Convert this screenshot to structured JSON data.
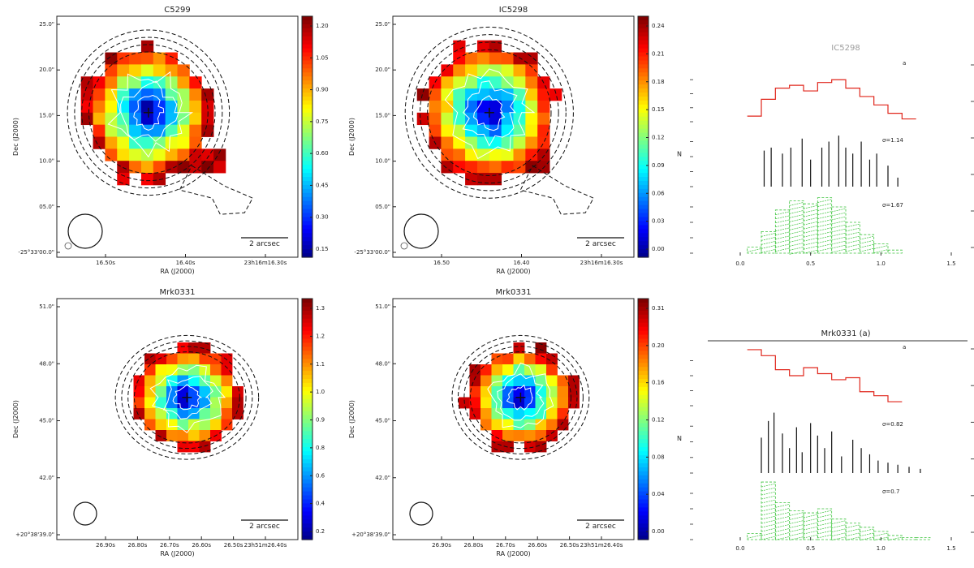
{
  "figure": {
    "maps": [
      {
        "title": "C5299",
        "galaxy_key": "IC5298",
        "xlabel": "RA (J2000)",
        "ylabel": "Dec (J2000)",
        "yticks": [
          "25.0\"",
          "20.0\"",
          "15.0\"",
          "10.0\"",
          "05.0\"",
          "-25°33'00.0\""
        ],
        "xticks": [
          "16.50s",
          "16.40s",
          "23h16m16.30s"
        ],
        "scalebar": "2 arcsec",
        "colorbar": {
          "ticks": [
            "1.20",
            "1.05",
            "0.90",
            "0.75",
            "0.60",
            "0.45",
            "0.30",
            "0.15"
          ],
          "min": 0.1,
          "max": 1.3,
          "reverse_cmap": false
        }
      },
      {
        "title": "IC5298",
        "galaxy_key": "IC5298",
        "xlabel": "RA (J2000)",
        "ylabel": "Dec (J2000)",
        "yticks": [
          "25.0\"",
          "20.0\"",
          "15.0\"",
          "10.0\"",
          "05.0\"",
          "-25°33'00.0\""
        ],
        "xticks": [
          "16.50",
          "16.40",
          "23h16m16.30s"
        ],
        "scalebar": "2 arcsec",
        "colorbar": {
          "ticks": [
            "0.24",
            "0.21",
            "0.18",
            "0.15",
            "0.12",
            "0.09",
            "0.06",
            "0.03",
            "0.00"
          ],
          "min": -0.02,
          "max": 0.26,
          "reverse_cmap": true
        }
      },
      {
        "title": "Mrk0331",
        "galaxy_key": "Mrk0331",
        "xlabel": "RA (J2000)",
        "ylabel": "Dec (J2000)",
        "yticks": [
          "51.0\"",
          "48.0\"",
          "45.0\"",
          "42.0\"",
          "+20°38'39.0\""
        ],
        "xticks": [
          "26.90s",
          "26.80s",
          "26.70s",
          "26.60s",
          "26.50s",
          "23h51m26.40s"
        ],
        "scalebar": "2 arcsec",
        "colorbar": {
          "ticks": [
            "1.3",
            "1.2",
            "1.1",
            "1.0",
            "0.9",
            "0.8",
            "0.6",
            "0.4",
            "0.2"
          ],
          "min": 0.1,
          "max": 1.4,
          "reverse_cmap": false
        }
      },
      {
        "title": "Mrk0331",
        "galaxy_key": "Mrk0331",
        "xlabel": "RA (J2000)",
        "ylabel": "Dec (J2000)",
        "yticks": [
          "51.0\"",
          "48.0\"",
          "45.0\"",
          "42.0\"",
          "+20°38'39.0\""
        ],
        "xticks": [
          "26.90s",
          "26.80s",
          "26.70s",
          "26.60s",
          "26.50s",
          "23h51m26.40s"
        ],
        "scalebar": "2 arcsec",
        "colorbar": {
          "ticks": [
            "0.31",
            "0.20",
            "0.16",
            "0.12",
            "0.08",
            "0.04",
            "0.00"
          ],
          "min": -0.02,
          "max": 0.34,
          "reverse_cmap": true
        }
      }
    ],
    "histograms": [
      {
        "title": "IC5298",
        "ylabel": "N",
        "xticks": [
          "0.0",
          "0.5",
          "1.0",
          "1.5"
        ],
        "xlabel": "",
        "stat_labels": [
          "σ=1.14",
          "σ=1.67"
        ],
        "corner_label": "a"
      },
      {
        "title": "Mrk0331 (a)",
        "ylabel": "N",
        "xticks": [
          "0.0",
          "0.5",
          "1.0",
          "1.5"
        ],
        "xlabel": "",
        "stat_labels": [
          "σ=0.82",
          "σ=0.7"
        ],
        "corner_label": "a"
      }
    ]
  },
  "chart_data": [
    {
      "type": "heatmap",
      "title": "C5299",
      "xlabel": "RA (J2000)",
      "ylabel": "Dec (J2000)",
      "colorbar_range": [
        0.1,
        1.3
      ]
    },
    {
      "type": "heatmap",
      "title": "IC5298",
      "xlabel": "RA (J2000)",
      "ylabel": "Dec (J2000)",
      "colorbar_range": [
        -0.02,
        0.26
      ]
    },
    {
      "type": "heatmap",
      "title": "Mrk0331",
      "xlabel": "RA (J2000)",
      "ylabel": "Dec (J2000)",
      "colorbar_range": [
        0.1,
        1.4
      ]
    },
    {
      "type": "heatmap",
      "title": "Mrk0331",
      "xlabel": "RA (J2000)",
      "ylabel": "Dec (J2000)",
      "colorbar_range": [
        -0.02,
        0.34
      ]
    },
    {
      "type": "bar",
      "title": "IC5298",
      "ylabel": "N",
      "xlim": [
        0.0,
        1.5
      ],
      "series": [
        {
          "name": "red",
          "color": "#e0261b",
          "style": "step",
          "ylim": [
            0,
            20
          ],
          "x": [
            0.1,
            0.2,
            0.3,
            0.4,
            0.5,
            0.6,
            0.7,
            0.8,
            0.9,
            1.0,
            1.1,
            1.2
          ],
          "values": [
            2,
            8,
            12,
            13,
            11,
            14,
            15,
            12,
            9,
            6,
            3,
            1
          ]
        },
        {
          "name": "black",
          "color": "#111111",
          "style": "stem",
          "ylim": [
            0,
            20
          ],
          "x": [
            0.17,
            0.22,
            0.3,
            0.36,
            0.44,
            0.5,
            0.58,
            0.63,
            0.7,
            0.75,
            0.8,
            0.86,
            0.92,
            0.97,
            1.05,
            1.12
          ],
          "values": [
            12,
            13,
            11,
            13,
            16,
            9,
            13,
            15,
            17,
            13,
            11,
            15,
            9,
            11,
            7,
            3
          ]
        },
        {
          "name": "green",
          "color": "#3cc43c",
          "style": "hatched",
          "ylim": [
            0,
            20
          ],
          "x": [
            0.1,
            0.2,
            0.3,
            0.4,
            0.5,
            0.6,
            0.7,
            0.8,
            0.9,
            1.0,
            1.1
          ],
          "values": [
            2,
            7,
            14,
            17,
            16,
            18,
            15,
            10,
            6,
            3,
            1
          ]
        }
      ]
    },
    {
      "type": "bar",
      "title": "Mrk0331 (a)",
      "ylabel": "N",
      "xlim": [
        0.0,
        1.5
      ],
      "series": [
        {
          "name": "red",
          "color": "#e0261b",
          "style": "step",
          "ylim": [
            0,
            30
          ],
          "x": [
            0.1,
            0.2,
            0.3,
            0.4,
            0.5,
            0.6,
            0.7,
            0.8,
            0.9,
            1.0,
            1.1
          ],
          "values": [
            28,
            25,
            18,
            15,
            19,
            16,
            13,
            14,
            7,
            5,
            2
          ]
        },
        {
          "name": "black",
          "color": "#111111",
          "style": "stem",
          "ylim": [
            0,
            30
          ],
          "x": [
            0.15,
            0.2,
            0.24,
            0.3,
            0.35,
            0.4,
            0.44,
            0.5,
            0.55,
            0.6,
            0.65,
            0.72,
            0.8,
            0.86,
            0.92,
            0.98,
            1.05,
            1.12,
            1.2,
            1.28
          ],
          "values": [
            17,
            25,
            29,
            19,
            12,
            22,
            10,
            24,
            18,
            12,
            20,
            8,
            16,
            12,
            9,
            6,
            5,
            4,
            3,
            2
          ]
        },
        {
          "name": "green",
          "color": "#3cc43c",
          "style": "hatched",
          "ylim": [
            0,
            30
          ],
          "x": [
            0.1,
            0.2,
            0.3,
            0.4,
            0.5,
            0.6,
            0.7,
            0.8,
            0.9,
            1.0,
            1.1,
            1.2,
            1.3
          ],
          "values": [
            3,
            28,
            18,
            14,
            13,
            15,
            10,
            8,
            6,
            4,
            2,
            1,
            1
          ]
        }
      ]
    }
  ]
}
